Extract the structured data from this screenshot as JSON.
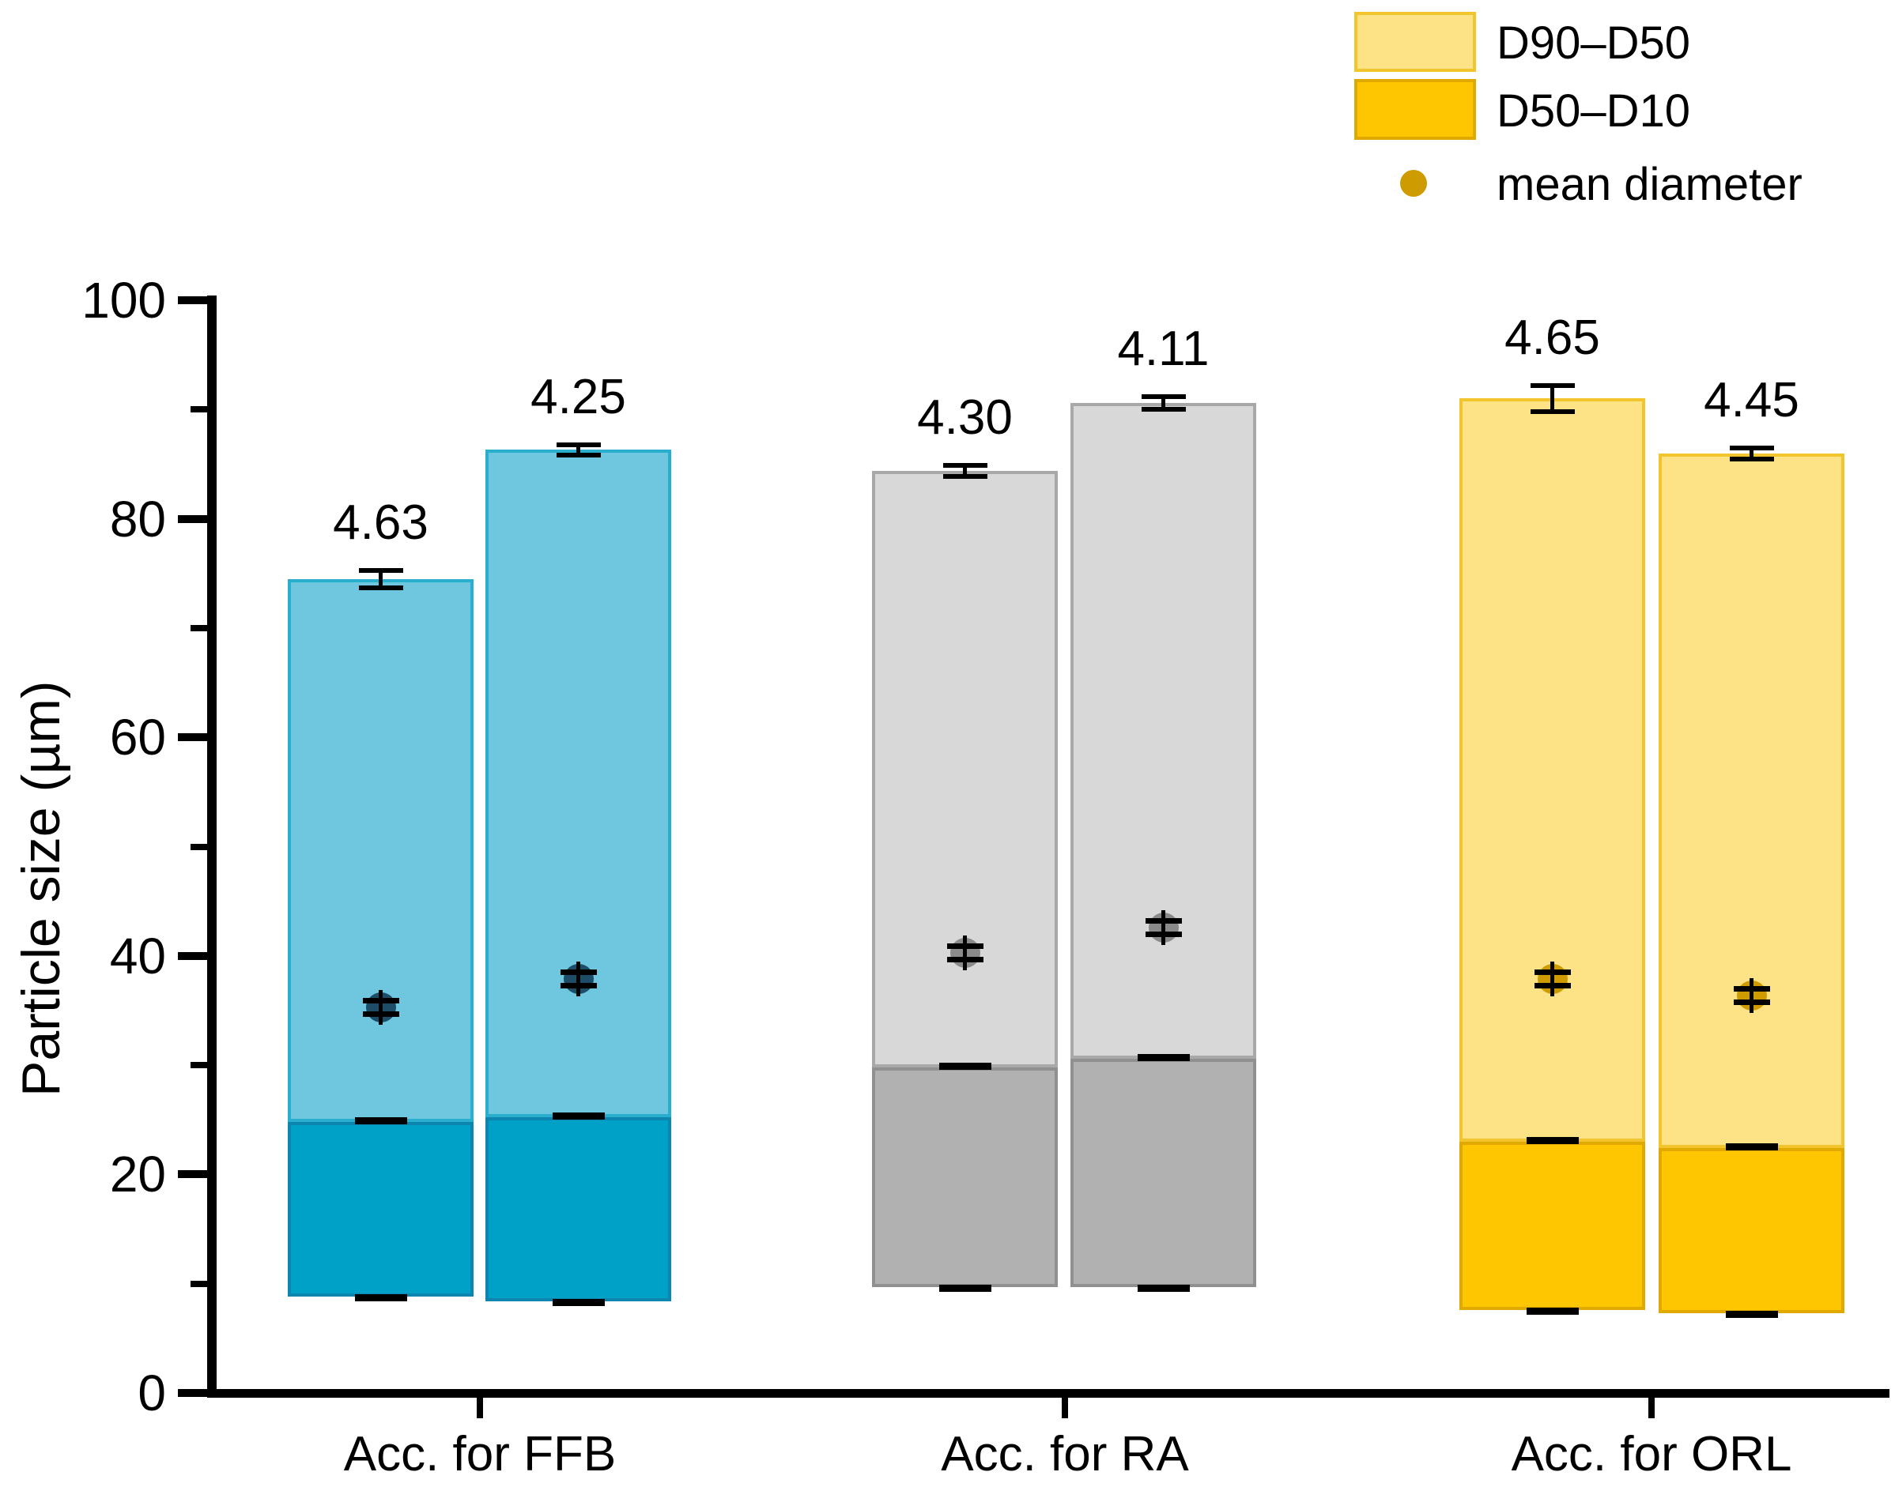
{
  "y_axis": {
    "label": "Particle size (µm)",
    "min": 0,
    "max": 100,
    "ticks": [
      "0",
      "20",
      "40",
      "60",
      "80",
      "100"
    ],
    "tick_values": [
      0,
      20,
      40,
      60,
      80,
      100
    ],
    "minor_tick_values": [
      10,
      30,
      50,
      70,
      90
    ]
  },
  "legend": {
    "items": [
      {
        "label": "D90–D50",
        "type": "swatch",
        "fill": "#FDE386",
        "border": "#F2C52D"
      },
      {
        "label": "D50–D10",
        "type": "swatch",
        "fill": "#FEC601",
        "border": "#DFA900"
      },
      {
        "label": "mean diameter",
        "type": "dot",
        "fill": "#CE9B00"
      }
    ]
  },
  "chart_data": {
    "type": "bar",
    "subtype": "stacked-range",
    "title": "",
    "xlabel": "",
    "ylabel": "Particle size (µm)",
    "ylim": [
      0,
      100
    ],
    "grid": false,
    "legend_position": "top-right",
    "stacked_segments": [
      "D50–D10",
      "D90–D50"
    ],
    "categories": [
      "Acc. for FFB",
      "Acc. for RA",
      "Acc. for ORL"
    ],
    "bars": [
      {
        "group": "Acc. for FFB",
        "span_label": "4.63",
        "d10": 8.8,
        "d50": 24.8,
        "d90": 74.5,
        "mean": 35.3,
        "d90_err": 0.8,
        "mean_err": 1.0,
        "colors": {
          "light": "#6EC6DF",
          "light_border": "#29AECE",
          "dark": "#00A1C6",
          "dark_border": "#0D85AE",
          "dot": "#1E4D68"
        }
      },
      {
        "group": "Acc. for FFB",
        "span_label": "4.25",
        "d10": 8.4,
        "d50": 25.2,
        "d90": 86.3,
        "mean": 37.9,
        "d90_err": 0.5,
        "mean_err": 1.0,
        "colors": {
          "light": "#6EC6DF",
          "light_border": "#29AECE",
          "dark": "#00A1C6",
          "dark_border": "#0D85AE",
          "dot": "#1E4D68"
        }
      },
      {
        "group": "Acc. for RA",
        "span_label": "4.30",
        "d10": 9.7,
        "d50": 29.8,
        "d90": 84.4,
        "mean": 40.3,
        "d90_err": 0.5,
        "mean_err": 1.0,
        "colors": {
          "light": "#D8D8D8",
          "light_border": "#A8A8A8",
          "dark": "#B1B1B1",
          "dark_border": "#909090",
          "dot": "#8A8A8A"
        }
      },
      {
        "group": "Acc. for RA",
        "span_label": "4.11",
        "d10": 9.7,
        "d50": 30.6,
        "d90": 90.6,
        "mean": 42.6,
        "d90_err": 0.6,
        "mean_err": 1.0,
        "colors": {
          "light": "#D8D8D8",
          "light_border": "#A8A8A8",
          "dark": "#B1B1B1",
          "dark_border": "#909090",
          "dot": "#8A8A8A"
        }
      },
      {
        "group": "Acc. for ORL",
        "span_label": "4.65",
        "d10": 7.6,
        "d50": 23.0,
        "d90": 91.0,
        "mean": 37.9,
        "d90_err": 1.2,
        "mean_err": 1.0,
        "colors": {
          "light": "#FDE386",
          "light_border": "#F2C52D",
          "dark": "#FEC601",
          "dark_border": "#DFA900",
          "dot": "#CE9B00"
        }
      },
      {
        "group": "Acc. for ORL",
        "span_label": "4.45",
        "d10": 7.3,
        "d50": 22.4,
        "d90": 86.0,
        "mean": 36.4,
        "d90_err": 0.5,
        "mean_err": 1.0,
        "colors": {
          "light": "#FDE386",
          "light_border": "#F2C52D",
          "dark": "#FEC601",
          "dark_border": "#DFA900",
          "dot": "#CE9B00"
        }
      }
    ]
  }
}
